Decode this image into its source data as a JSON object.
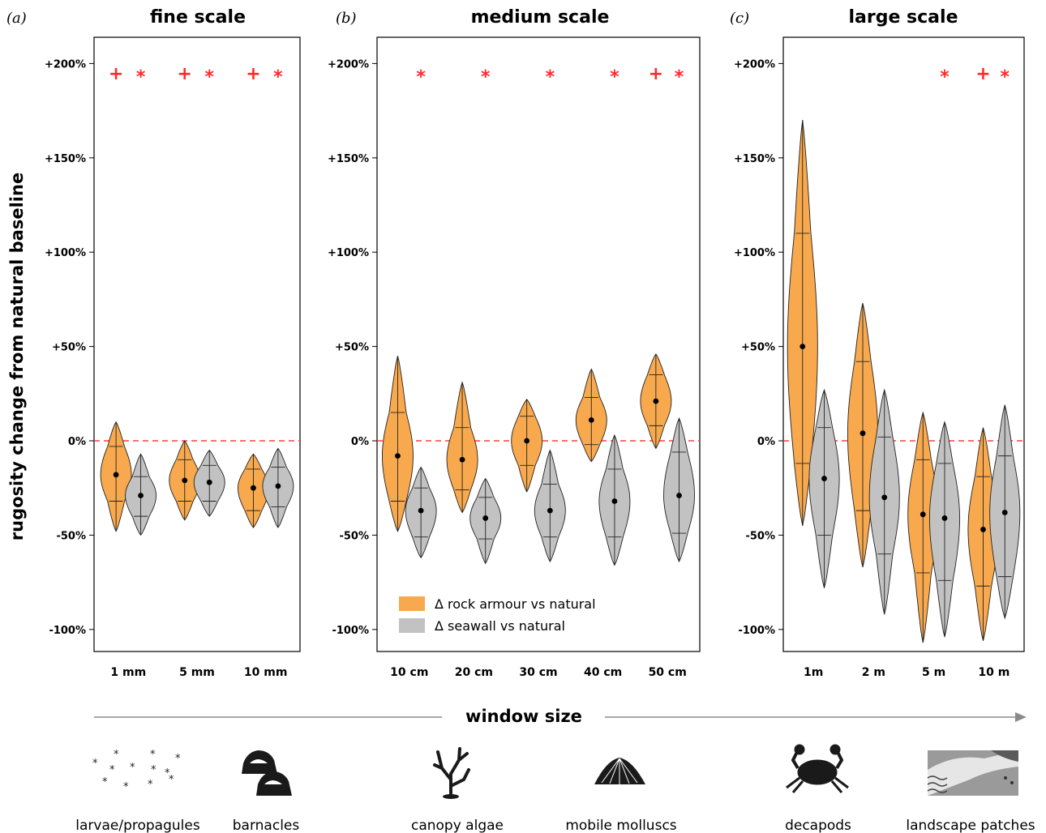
{
  "ylabel": "rugosity change from natural baseline",
  "xlabel": "window size",
  "colors": {
    "rock_armour": "#f8a94e",
    "seawall": "#c2c2c2",
    "baseline": "#ff3b3b",
    "marks": "#ff2a2a"
  },
  "legend": {
    "rock_armour": "Δ rock armour vs natural",
    "seawall": "Δ seawall vs natural",
    "placement": "bottom-left of panel b"
  },
  "yticks": [
    {
      "v": 200,
      "label": "+200%"
    },
    {
      "v": 150,
      "label": "+150%"
    },
    {
      "v": 100,
      "label": "+100%"
    },
    {
      "v": 50,
      "label": "+50%"
    },
    {
      "v": 0,
      "label": "0%"
    },
    {
      "v": -50,
      "label": "-50%"
    },
    {
      "v": -100,
      "label": "-100%"
    }
  ],
  "chart_data": [
    {
      "type": "violin",
      "letter": "(a)",
      "title": "fine scale",
      "ylim": [
        -110,
        222
      ],
      "categories": [
        "1 mm",
        "5 mm",
        "10 mm"
      ],
      "series": [
        {
          "key": "rock_armour",
          "median": [
            -18,
            -21,
            -25
          ],
          "q1": [
            -32,
            -32,
            -37
          ],
          "q3": [
            -3,
            -10,
            -15
          ],
          "min": [
            -48,
            -42,
            -46
          ],
          "max": [
            10,
            0,
            -7
          ]
        },
        {
          "key": "seawall",
          "median": [
            -29,
            -22,
            -24
          ],
          "q1": [
            -40,
            -32,
            -35
          ],
          "q3": [
            -19,
            -13,
            -14
          ],
          "min": [
            -50,
            -40,
            -46
          ],
          "max": [
            -7,
            -5,
            -4
          ]
        }
      ],
      "marks": [
        "+",
        "*",
        "+",
        "*",
        "+",
        "*"
      ]
    },
    {
      "type": "violin",
      "letter": "(b)",
      "title": "medium scale",
      "ylim": [
        -110,
        222
      ],
      "categories": [
        "10 cm",
        "20 cm",
        "30 cm",
        "40 cm",
        "50 cm"
      ],
      "series": [
        {
          "key": "rock_armour",
          "median": [
            -8,
            -10,
            0,
            11,
            21
          ],
          "q1": [
            -32,
            -26,
            -13,
            -2,
            8
          ],
          "q3": [
            15,
            7,
            13,
            23,
            35
          ],
          "min": [
            -48,
            -38,
            -27,
            -11,
            -4
          ],
          "max": [
            45,
            31,
            22,
            38,
            46
          ]
        },
        {
          "key": "seawall",
          "median": [
            -37,
            -41,
            -37,
            -32,
            -29
          ],
          "q1": [
            -51,
            -52,
            -51,
            -51,
            -49
          ],
          "q3": [
            -25,
            -30,
            -23,
            -15,
            -6
          ],
          "min": [
            -62,
            -65,
            -64,
            -66,
            -64
          ],
          "max": [
            -14,
            -20,
            -5,
            3,
            12
          ]
        }
      ],
      "marks": [
        "",
        "*",
        "",
        "*",
        "",
        "*",
        "",
        "*",
        "+",
        "*"
      ]
    },
    {
      "type": "violin",
      "letter": "(c)",
      "title": "large scale",
      "ylim": [
        -110,
        222
      ],
      "categories": [
        "1m",
        "2 m",
        "5 m",
        "10 m"
      ],
      "series": [
        {
          "key": "rock_armour",
          "median": [
            50,
            4,
            -39,
            -47
          ],
          "q1": [
            -12,
            -37,
            -70,
            -77
          ],
          "q3": [
            110,
            42,
            -10,
            -19
          ],
          "min": [
            -45,
            -67,
            -107,
            -106
          ],
          "max": [
            170,
            73,
            15,
            7
          ]
        },
        {
          "key": "seawall",
          "median": [
            -20,
            -30,
            -41,
            -38
          ],
          "q1": [
            -50,
            -60,
            -74,
            -72
          ],
          "q3": [
            7,
            2,
            -12,
            -8
          ],
          "min": [
            -78,
            -92,
            -104,
            -94
          ],
          "max": [
            27,
            27,
            10,
            19
          ]
        }
      ],
      "marks": [
        "",
        "",
        "",
        "",
        "",
        "*",
        "+",
        "*"
      ]
    }
  ],
  "icons": [
    {
      "name": "larvae-propagules-icon",
      "label": "larvae/propagules"
    },
    {
      "name": "barnacles-icon",
      "label": "barnacles"
    },
    {
      "name": "canopy-algae-icon",
      "label": "canopy algae"
    },
    {
      "name": "mobile-molluscs-icon",
      "label": "mobile molluscs"
    },
    {
      "name": "decapods-icon",
      "label": "decapods"
    },
    {
      "name": "landscape-patches-icon",
      "label": "landscape patches"
    }
  ]
}
